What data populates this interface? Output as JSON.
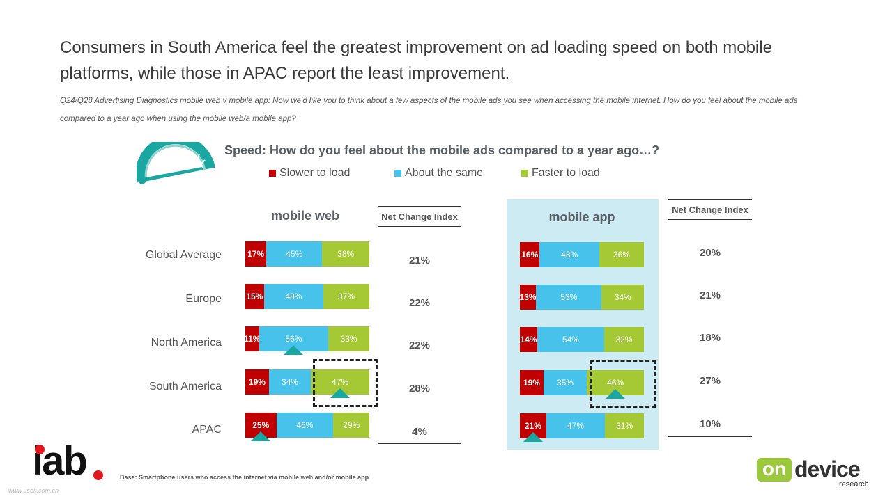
{
  "headline": "Consumers in South America feel the greatest improvement on ad loading speed on both mobile platforms, while those in APAC report the least improvement.",
  "question": "Q24/Q28 Advertising Diagnostics mobile web v mobile app: Now we'd like you to think about a few aspects of the mobile ads you see when accessing the mobile internet. How do you feel about the mobile ads compared to a year ago when using the mobile web/a mobile app?",
  "chart_title": "Speed: How do you feel about the mobile ads compared to a year ago…?",
  "legend": [
    {
      "label": "Slower to load",
      "color": "#c00000"
    },
    {
      "label": "About the same",
      "color": "#47c2eb"
    },
    {
      "label": "Faster to load",
      "color": "#a5c835"
    }
  ],
  "index_header": "Net Change Index",
  "base_note": "Base: Smartphone users who access the internet via mobile web and/or mobile app",
  "watermark": "www.useit.com.cn",
  "logos": {
    "iab": "iab",
    "on": "on",
    "device": "device",
    "research": "research"
  },
  "icons": {
    "gauge": "speedometer-icon",
    "marker": "triangle-marker-icon"
  },
  "chart_data": {
    "type": "bar",
    "orientation": "horizontal",
    "stacked": true,
    "categories": [
      "Global Average",
      "Europe",
      "North America",
      "South America",
      "APAC"
    ],
    "panels": [
      {
        "name": "mobile web",
        "series": [
          {
            "name": "Slower to load",
            "values": [
              17,
              15,
              11,
              19,
              25
            ],
            "labels": [
              "17%",
              "15%",
              "11%",
              "19%",
              "25%"
            ]
          },
          {
            "name": "About the same",
            "values": [
              45,
              48,
              56,
              34,
              46
            ],
            "labels": [
              "45%",
              "48%",
              "56%",
              "34%",
              "46%"
            ]
          },
          {
            "name": "Faster to load",
            "values": [
              38,
              37,
              33,
              47,
              29
            ],
            "labels": [
              "38%",
              "37%",
              "33%",
              "47%",
              "29%"
            ]
          }
        ],
        "net_change_index": [
          "21%",
          "22%",
          "22%",
          "28%",
          "4%"
        ],
        "highlighted_category": "South America",
        "markers": [
          {
            "category": "North America",
            "series": "About the same"
          },
          {
            "category": "South America",
            "series": "Faster to load"
          },
          {
            "category": "APAC",
            "series": "Slower to load"
          }
        ]
      },
      {
        "name": "mobile app",
        "series": [
          {
            "name": "Slower to load",
            "values": [
              16,
              13,
              14,
              19,
              21
            ],
            "labels": [
              "16%",
              "13%",
              "14%",
              "19%",
              "21%"
            ]
          },
          {
            "name": "About the same",
            "values": [
              48,
              53,
              54,
              35,
              47
            ],
            "labels": [
              "48%",
              "53%",
              "54%",
              "35%",
              "47%"
            ]
          },
          {
            "name": "Faster to load",
            "values": [
              36,
              34,
              32,
              46,
              31
            ],
            "labels": [
              "36%",
              "34%",
              "32%",
              "46%",
              "31%"
            ]
          }
        ],
        "net_change_index": [
          "20%",
          "21%",
          "18%",
          "27%",
          "10%"
        ],
        "highlighted_category": "South America",
        "markers": [
          {
            "category": "South America",
            "series": "Faster to load"
          },
          {
            "category": "APAC",
            "series": "Slower to load"
          }
        ]
      }
    ]
  }
}
